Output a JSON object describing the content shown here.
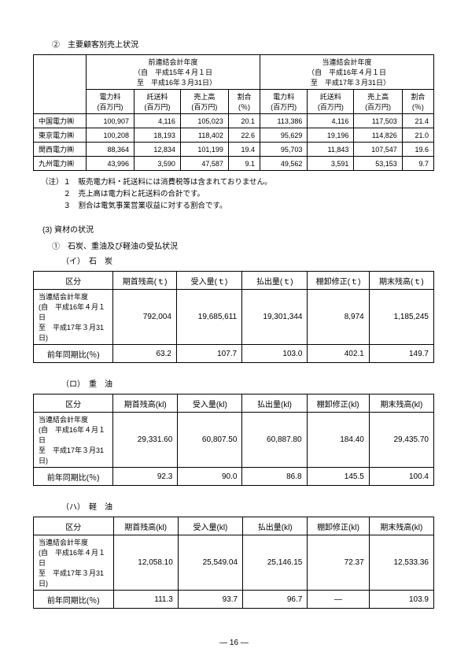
{
  "titles": {
    "main2": "②　主要顧客別売上状況",
    "section3": "(3) 資材の状況",
    "sub1": "①　石炭、重油及び軽油の受払状況",
    "coal": "（イ）　石　炭",
    "heavy": "（ロ）　重　油",
    "light": "（ハ）　軽　油",
    "pageNum": "― 16 ―"
  },
  "salesTable": {
    "prevPeriod": "前連結会計年度\n（自　平成15年４月１日\n　至　平成16年３月31日）",
    "currPeriod": "当連結会計年度\n（自　平成16年４月１日\n　至　平成17年３月31日）",
    "cols": {
      "denryoku": "電力料\n(百万円)",
      "takusou": "託送料\n(百万円)",
      "uriage": "売上高\n(百万円)",
      "wariai": "割合\n(％)"
    },
    "rows": [
      {
        "name": "中国電力㈱",
        "p1": "100,907",
        "p2": "4,116",
        "p3": "105,023",
        "p4": "20.1",
        "c1": "113,386",
        "c2": "4,116",
        "c3": "117,503",
        "c4": "21.4"
      },
      {
        "name": "東京電力㈱",
        "p1": "100,208",
        "p2": "18,193",
        "p3": "118,402",
        "p4": "22.6",
        "c1": "95,629",
        "c2": "19,196",
        "c3": "114,826",
        "c4": "21.0"
      },
      {
        "name": "関西電力㈱",
        "p1": "88,364",
        "p2": "12,834",
        "p3": "101,199",
        "p4": "19.4",
        "c1": "95,703",
        "c2": "11,843",
        "c3": "107,547",
        "c4": "19.6"
      },
      {
        "name": "九州電力㈱",
        "p1": "43,996",
        "p2": "3,590",
        "p3": "47,587",
        "p4": "9.1",
        "c1": "49,562",
        "c2": "3,591",
        "c3": "53,153",
        "c4": "9.7"
      }
    ]
  },
  "notes": {
    "n1": "（注）１　販売電力料・託送料には消費税等は含まれておりません。",
    "n2": "　　　２　売上高は電力料と託送料の合計です。",
    "n3": "　　　３　割合は電気事業営業収益に対する割合です。"
  },
  "materialHeaders": {
    "kubun": "区分",
    "period": "当連結会計年度\n(自　平成16年４月１日\n至　平成17年３月31日)",
    "prev": "前年同期比(％)"
  },
  "coal": {
    "cols": [
      "期首残高(ｔ)",
      "受入量(ｔ)",
      "払出量(ｔ)",
      "棚卸修正(ｔ)",
      "期末残高(ｔ)"
    ],
    "row1": [
      "792,004",
      "19,685,611",
      "19,301,344",
      "8,974",
      "1,185,245"
    ],
    "row2": [
      "63.2",
      "107.7",
      "103.0",
      "402.1",
      "149.7"
    ]
  },
  "heavy": {
    "cols": [
      "期首残高(kl)",
      "受入量(kl)",
      "払出量(kl)",
      "棚卸修正(kl)",
      "期末残高(kl)"
    ],
    "row1": [
      "29,331.60",
      "60,807.50",
      "60,887.80",
      "184.40",
      "29,435.70"
    ],
    "row2": [
      "92.3",
      "90.0",
      "86.8",
      "145.5",
      "100.4"
    ]
  },
  "light": {
    "cols": [
      "期首残高(kl)",
      "受入量(kl)",
      "払出量(kl)",
      "棚卸修正(kl)",
      "期末残高(kl)"
    ],
    "row1": [
      "12,058.10",
      "25,549.04",
      "25,146.15",
      "72.37",
      "12,533.36"
    ],
    "row2": [
      "111.3",
      "93.7",
      "96.7",
      "―",
      "103.9"
    ]
  }
}
